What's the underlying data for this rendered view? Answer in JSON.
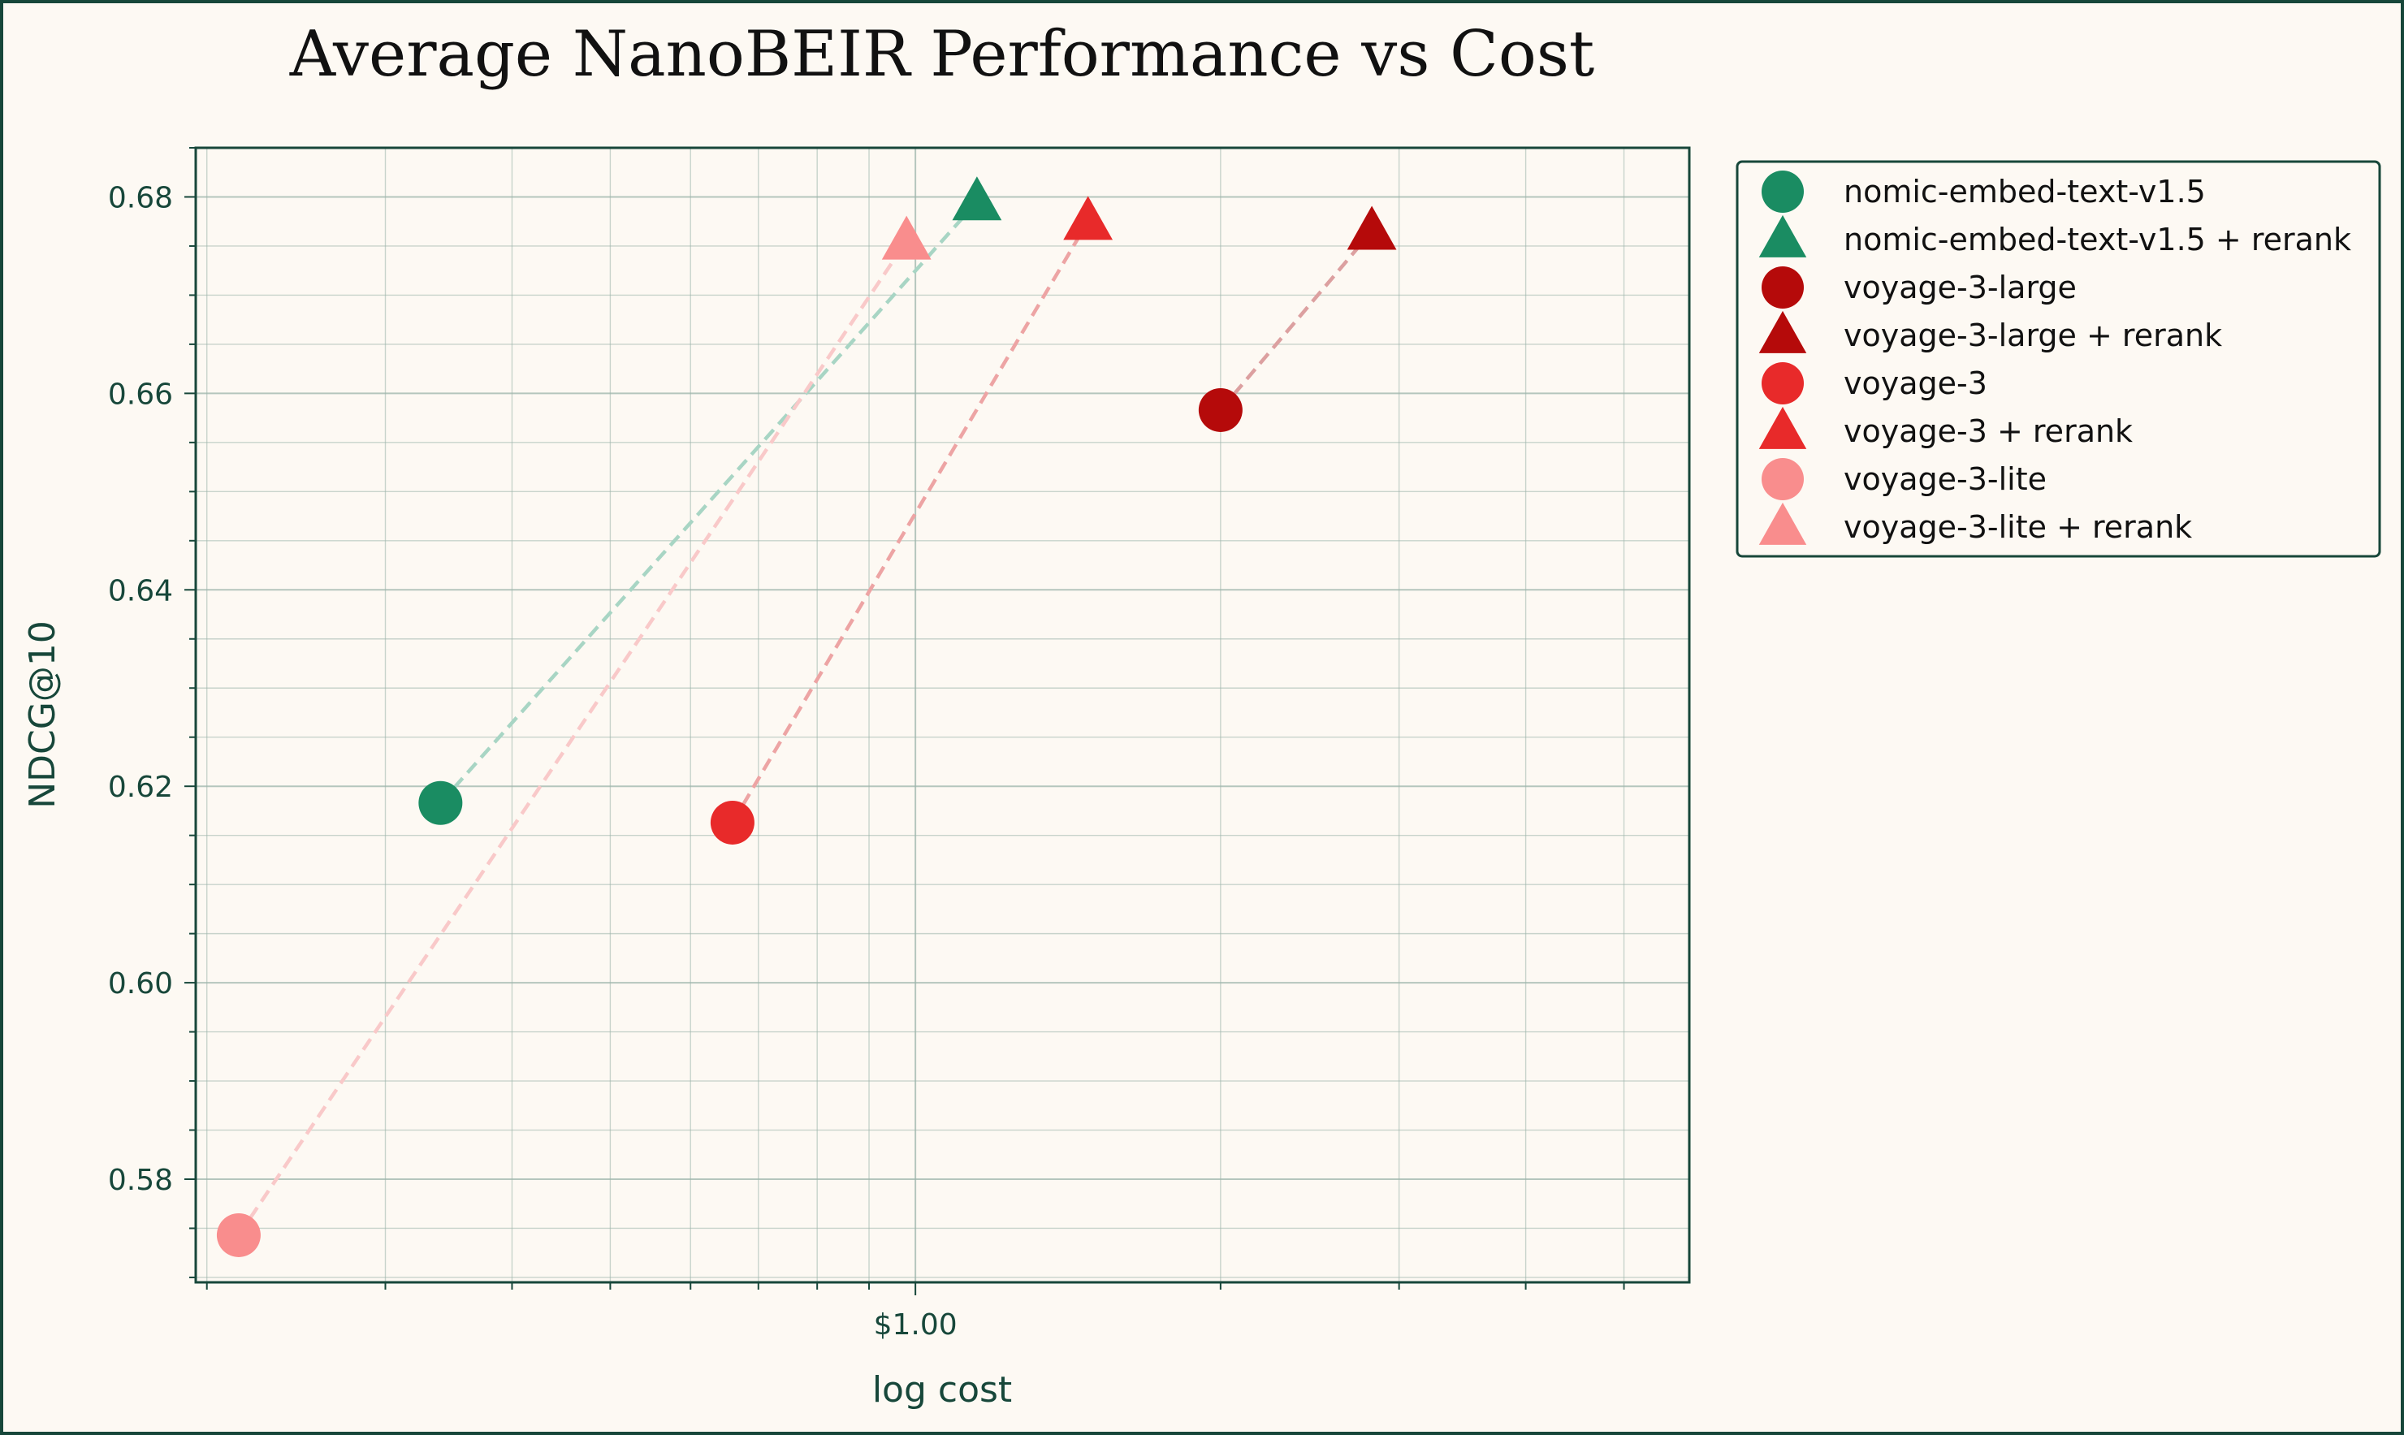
{
  "chart_data": {
    "type": "scatter",
    "title": "Average NanoBEIR Performance vs Cost",
    "xlabel": "log cost",
    "ylabel": "NDCG@10",
    "x_scale": "log",
    "xlim": [
      0.195,
      5.8
    ],
    "ylim": [
      0.5695,
      0.685
    ],
    "x_ticks": [
      {
        "value": 1.0,
        "label": "$1.00"
      }
    ],
    "y_ticks": [
      0.58,
      0.6,
      0.62,
      0.64,
      0.66,
      0.68
    ],
    "grid": true,
    "legend_position": "outside-right",
    "series": [
      {
        "name": "nomic-embed-text-v1.5",
        "marker": "circle",
        "color": "#1a8c62",
        "points": [
          {
            "x": 0.34,
            "y": 0.6183
          }
        ]
      },
      {
        "name": "nomic-embed-text-v1.5 + rerank",
        "marker": "triangle",
        "color": "#1a8c62",
        "points": [
          {
            "x": 1.15,
            "y": 0.6795
          }
        ]
      },
      {
        "name": "voyage-3-large",
        "marker": "circle",
        "color": "#b50a0a",
        "points": [
          {
            "x": 2.0,
            "y": 0.6583
          }
        ]
      },
      {
        "name": "voyage-3-large + rerank",
        "marker": "triangle",
        "color": "#b50a0a",
        "points": [
          {
            "x": 2.82,
            "y": 0.6765
          }
        ]
      },
      {
        "name": "voyage-3",
        "marker": "circle",
        "color": "#e82a2a",
        "points": [
          {
            "x": 0.66,
            "y": 0.6163
          }
        ]
      },
      {
        "name": "voyage-3 + rerank",
        "marker": "triangle",
        "color": "#e82a2a",
        "points": [
          {
            "x": 1.48,
            "y": 0.6775
          }
        ]
      },
      {
        "name": "voyage-3-lite",
        "marker": "circle",
        "color": "#f98d8d",
        "points": [
          {
            "x": 0.215,
            "y": 0.5743
          }
        ]
      },
      {
        "name": "voyage-3-lite + rerank",
        "marker": "triangle",
        "color": "#f98d8d",
        "points": [
          {
            "x": 0.98,
            "y": 0.6755
          }
        ]
      }
    ],
    "connections": [
      {
        "from": "nomic-embed-text-v1.5",
        "to": "nomic-embed-text-v1.5 + rerank",
        "color": "#a8d5c4",
        "style": "dashed"
      },
      {
        "from": "voyage-3-lite",
        "to": "voyage-3-lite + rerank",
        "color": "#f9c9c9",
        "style": "dashed"
      },
      {
        "from": "voyage-3",
        "to": "voyage-3 + rerank",
        "color": "#eda4a4",
        "style": "dashed"
      },
      {
        "from": "voyage-3-large",
        "to": "voyage-3-large + rerank",
        "color": "#dca0a0",
        "style": "dashed"
      }
    ]
  },
  "colors": {
    "background": "#fdf9f3",
    "frame": "#17473a",
    "grid": "#9db5ac"
  }
}
